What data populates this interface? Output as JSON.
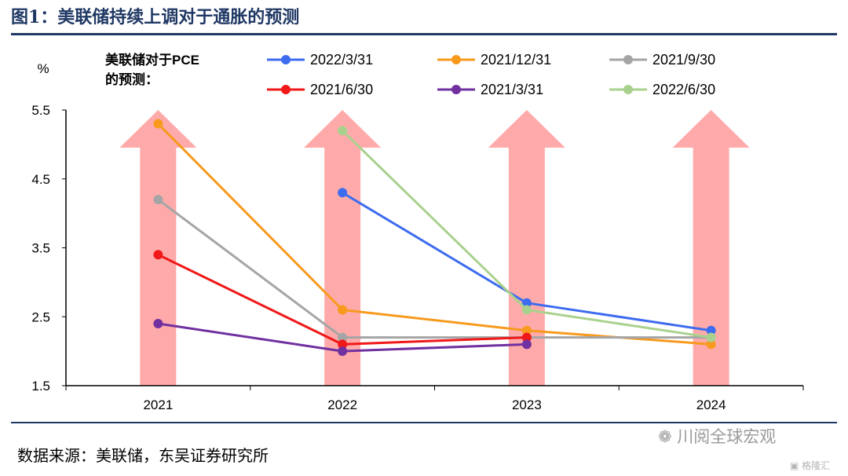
{
  "header": {
    "title": "图1：美联储持续上调对于通胀的预测"
  },
  "footer": {
    "source": "数据来源：美联储，东吴证券研究所"
  },
  "watermark": {
    "brand": "川阅全球宏观",
    "sub": "格隆汇"
  },
  "colors": {
    "title": "#1f3864",
    "arrow": "#ffaaaa"
  },
  "chart_data": {
    "type": "line",
    "title": "",
    "ylabel": "%",
    "legend_title": [
      "美联储对于PCE",
      "的预测："
    ],
    "categories": [
      "2021",
      "2022",
      "2023",
      "2024"
    ],
    "ylim": [
      1.5,
      5.5
    ],
    "yticks": [
      "5.5",
      "4.5",
      "3.5",
      "2.5",
      "1.5"
    ],
    "series": [
      {
        "name": "2022/3/31",
        "color": "#3d6cf0",
        "values": [
          null,
          4.3,
          2.7,
          2.3
        ]
      },
      {
        "name": "2021/12/31",
        "color": "#f79a1e",
        "values": [
          5.3,
          2.6,
          2.3,
          2.1
        ]
      },
      {
        "name": "2021/9/30",
        "color": "#a5a5a5",
        "values": [
          4.2,
          2.2,
          2.2,
          2.2
        ]
      },
      {
        "name": "2021/6/30",
        "color": "#f01818",
        "values": [
          3.4,
          2.1,
          2.2,
          null
        ]
      },
      {
        "name": "2021/3/31",
        "color": "#7030a0",
        "values": [
          2.4,
          2.0,
          2.1,
          null
        ]
      },
      {
        "name": "2022/6/30",
        "color": "#a9d18e",
        "values": [
          null,
          5.2,
          2.6,
          2.2
        ]
      }
    ],
    "arrows": [
      5.5,
      5.5,
      5.5,
      5.5
    ]
  }
}
